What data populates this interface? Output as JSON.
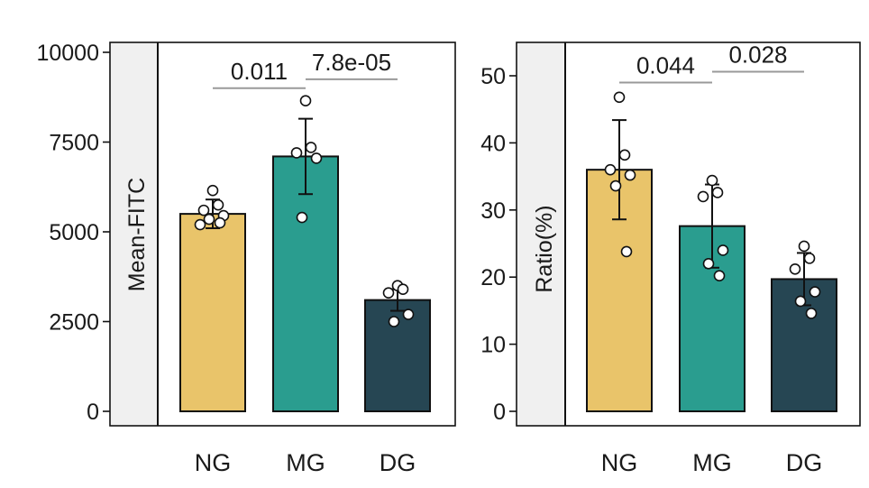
{
  "chart_data": [
    {
      "type": "bar",
      "ylabel": "Mean-FITC",
      "categories": [
        "NG",
        "MG",
        "DG"
      ],
      "values": [
        5500,
        7100,
        3100
      ],
      "error": [
        400,
        1050,
        300
      ],
      "points": [
        [
          6150,
          5750,
          5600,
          5450,
          5350,
          5250,
          5200
        ],
        [
          8650,
          7350,
          7200,
          7050,
          5400
        ],
        [
          3500,
          3400,
          3300,
          2700,
          2500
        ]
      ],
      "ylim": [
        0,
        10000
      ],
      "yticks": [
        0,
        2500,
        5000,
        7500,
        10000
      ],
      "tick_labels": [
        "0",
        "2500",
        "5000",
        "7500",
        "10000"
      ],
      "colors": [
        "#E9C46A",
        "#2A9D8F",
        "#264653"
      ],
      "annotations": [
        {
          "text": "0.011",
          "from": 0,
          "to": 1,
          "y": 9000
        },
        {
          "text": "7.8e-05",
          "from": 1,
          "to": 2,
          "y": 9250
        }
      ]
    },
    {
      "type": "bar",
      "ylabel": "Ratio(%)",
      "categories": [
        "NG",
        "MG",
        "DG"
      ],
      "values": [
        36,
        27.6,
        19.7
      ],
      "error": [
        7.4,
        6.2,
        3.9
      ],
      "points": [
        [
          46.8,
          38.2,
          36,
          35.2,
          33.6,
          23.8
        ],
        [
          34.4,
          32.6,
          32,
          24,
          22,
          20.2
        ],
        [
          24.6,
          22.8,
          21.2,
          17.8,
          16.4,
          14.6
        ]
      ],
      "ylim": [
        0,
        54
      ],
      "yticks": [
        0,
        10,
        20,
        30,
        40,
        50
      ],
      "tick_labels": [
        "0",
        "10",
        "20",
        "30",
        "40",
        "50"
      ],
      "colors": [
        "#E9C46A",
        "#2A9D8F",
        "#264653"
      ],
      "annotations": [
        {
          "text": "0.044",
          "from": 0,
          "to": 1,
          "y": 49
        },
        {
          "text": "0.028",
          "from": 1,
          "to": 2,
          "y": 50.6
        }
      ]
    }
  ]
}
